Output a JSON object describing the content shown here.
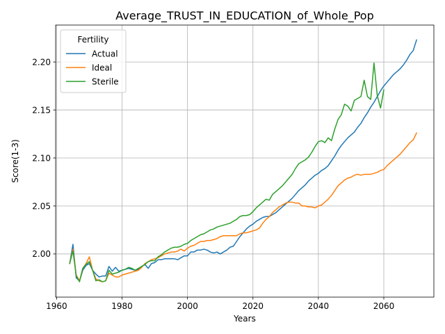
{
  "chart_data": {
    "type": "line",
    "title": "Average_TRUST_IN_EDUCATION_of_Whole_Pop",
    "xlabel": "Years",
    "ylabel": "Score(1-3)",
    "xlim": [
      1959.7,
      2075.3
    ],
    "ylim": [
      1.955,
      2.2385
    ],
    "xticks": [
      1960,
      1980,
      2000,
      2020,
      2040,
      2060
    ],
    "yticks": [
      2.0,
      2.05,
      2.1,
      2.15,
      2.2
    ],
    "ytick_labels": [
      "2.00",
      "2.05",
      "2.10",
      "2.15",
      "2.20"
    ],
    "grid": true,
    "legend": {
      "title": "Fertility",
      "placement": "top-left"
    },
    "series": [
      {
        "name": "Actual",
        "color": "#1f77b4",
        "points": [
          [
            1964,
            1.99
          ],
          [
            1965,
            2.01
          ],
          [
            1966,
            1.975
          ],
          [
            1967,
            1.972
          ],
          [
            1968,
            1.983
          ],
          [
            1969,
            1.988
          ],
          [
            1970,
            1.99
          ],
          [
            1971,
            1.983
          ],
          [
            1972,
            1.979
          ],
          [
            1973,
            1.976
          ],
          [
            1974,
            1.977
          ],
          [
            1975,
            1.977
          ],
          [
            1976,
            1.987
          ],
          [
            1977,
            1.982
          ],
          [
            1978,
            1.986
          ],
          [
            1979,
            1.982
          ],
          [
            1980,
            1.983
          ],
          [
            1981,
            1.984
          ],
          [
            1982,
            1.985
          ],
          [
            1983,
            1.984
          ],
          [
            1984,
            1.983
          ],
          [
            1985,
            1.984
          ],
          [
            1986,
            1.987
          ],
          [
            1987,
            1.989
          ],
          [
            1988,
            1.985
          ],
          [
            1989,
            1.99
          ],
          [
            1990,
            1.991
          ],
          [
            1991,
            1.994
          ],
          [
            1992,
            1.994
          ],
          [
            1993,
            1.995
          ],
          [
            1994,
            1.995
          ],
          [
            1995,
            1.995
          ],
          [
            1996,
            1.995
          ],
          [
            1997,
            1.994
          ],
          [
            1998,
            1.996
          ],
          [
            1999,
            1.998
          ],
          [
            2000,
            1.998
          ],
          [
            2001,
            2.002
          ],
          [
            2002,
            2.002
          ],
          [
            2003,
            2.004
          ],
          [
            2004,
            2.004
          ],
          [
            2005,
            2.005
          ],
          [
            2006,
            2.004
          ],
          [
            2007,
            2.002
          ],
          [
            2008,
            2.001
          ],
          [
            2009,
            2.002
          ],
          [
            2010,
            2.0
          ],
          [
            2011,
            2.002
          ],
          [
            2012,
            2.004
          ],
          [
            2013,
            2.007
          ],
          [
            2014,
            2.008
          ],
          [
            2015,
            2.013
          ],
          [
            2016,
            2.018
          ],
          [
            2017,
            2.022
          ],
          [
            2018,
            2.026
          ],
          [
            2019,
            2.029
          ],
          [
            2020,
            2.031
          ],
          [
            2021,
            2.034
          ],
          [
            2022,
            2.036
          ],
          [
            2023,
            2.038
          ],
          [
            2024,
            2.039
          ],
          [
            2025,
            2.039
          ],
          [
            2026,
            2.041
          ],
          [
            2027,
            2.043
          ],
          [
            2028,
            2.046
          ],
          [
            2029,
            2.049
          ],
          [
            2030,
            2.052
          ],
          [
            2031,
            2.055
          ],
          [
            2032,
            2.058
          ],
          [
            2033,
            2.062
          ],
          [
            2034,
            2.066
          ],
          [
            2035,
            2.069
          ],
          [
            2036,
            2.072
          ],
          [
            2037,
            2.076
          ],
          [
            2038,
            2.079
          ],
          [
            2039,
            2.082
          ],
          [
            2040,
            2.084
          ],
          [
            2041,
            2.087
          ],
          [
            2042,
            2.089
          ],
          [
            2043,
            2.092
          ],
          [
            2044,
            2.097
          ],
          [
            2045,
            2.102
          ],
          [
            2046,
            2.108
          ],
          [
            2047,
            2.113
          ],
          [
            2048,
            2.117
          ],
          [
            2049,
            2.121
          ],
          [
            2050,
            2.124
          ],
          [
            2051,
            2.127
          ],
          [
            2052,
            2.132
          ],
          [
            2053,
            2.136
          ],
          [
            2054,
            2.142
          ],
          [
            2055,
            2.147
          ],
          [
            2056,
            2.153
          ],
          [
            2057,
            2.158
          ],
          [
            2058,
            2.164
          ],
          [
            2059,
            2.17
          ],
          [
            2060,
            2.175
          ],
          [
            2061,
            2.179
          ],
          [
            2062,
            2.183
          ],
          [
            2063,
            2.187
          ],
          [
            2064,
            2.19
          ],
          [
            2065,
            2.193
          ],
          [
            2066,
            2.197
          ],
          [
            2067,
            2.202
          ],
          [
            2068,
            2.208
          ],
          [
            2069,
            2.212
          ],
          [
            2070,
            2.223
          ]
        ]
      },
      {
        "name": "Ideal",
        "color": "#ff7f0e",
        "points": [
          [
            1964,
            1.99
          ],
          [
            1965,
            2.005
          ],
          [
            1966,
            1.978
          ],
          [
            1967,
            1.972
          ],
          [
            1968,
            1.985
          ],
          [
            1969,
            1.99
          ],
          [
            1970,
            1.997
          ],
          [
            1971,
            1.983
          ],
          [
            1972,
            1.974
          ],
          [
            1973,
            1.972
          ],
          [
            1974,
            1.971
          ],
          [
            1975,
            1.972
          ],
          [
            1976,
            1.98
          ],
          [
            1977,
            1.978
          ],
          [
            1978,
            1.976
          ],
          [
            1979,
            1.976
          ],
          [
            1980,
            1.978
          ],
          [
            1981,
            1.979
          ],
          [
            1982,
            1.98
          ],
          [
            1983,
            1.981
          ],
          [
            1984,
            1.982
          ],
          [
            1985,
            1.983
          ],
          [
            1986,
            1.986
          ],
          [
            1987,
            1.99
          ],
          [
            1988,
            1.992
          ],
          [
            1989,
            1.994
          ],
          [
            1990,
            1.995
          ],
          [
            1991,
            1.996
          ],
          [
            1992,
            1.998
          ],
          [
            1993,
            2.0
          ],
          [
            1994,
            2.001
          ],
          [
            1995,
            2.002
          ],
          [
            1996,
            2.002
          ],
          [
            1997,
            2.003
          ],
          [
            1998,
            2.005
          ],
          [
            1999,
            2.003
          ],
          [
            2000,
            2.006
          ],
          [
            2001,
            2.008
          ],
          [
            2002,
            2.009
          ],
          [
            2003,
            2.011
          ],
          [
            2004,
            2.013
          ],
          [
            2005,
            2.013
          ],
          [
            2006,
            2.014
          ],
          [
            2007,
            2.014
          ],
          [
            2008,
            2.015
          ],
          [
            2009,
            2.016
          ],
          [
            2010,
            2.018
          ],
          [
            2011,
            2.019
          ],
          [
            2012,
            2.019
          ],
          [
            2013,
            2.019
          ],
          [
            2014,
            2.019
          ],
          [
            2015,
            2.019
          ],
          [
            2016,
            2.021
          ],
          [
            2017,
            2.022
          ],
          [
            2018,
            2.022
          ],
          [
            2019,
            2.023
          ],
          [
            2020,
            2.024
          ],
          [
            2021,
            2.025
          ],
          [
            2022,
            2.027
          ],
          [
            2023,
            2.032
          ],
          [
            2024,
            2.036
          ],
          [
            2025,
            2.039
          ],
          [
            2026,
            2.043
          ],
          [
            2027,
            2.046
          ],
          [
            2028,
            2.049
          ],
          [
            2029,
            2.051
          ],
          [
            2030,
            2.053
          ],
          [
            2031,
            2.054
          ],
          [
            2032,
            2.054
          ],
          [
            2033,
            2.053
          ],
          [
            2034,
            2.053
          ],
          [
            2035,
            2.05
          ],
          [
            2036,
            2.05
          ],
          [
            2037,
            2.049
          ],
          [
            2038,
            2.049
          ],
          [
            2039,
            2.048
          ],
          [
            2040,
            2.05
          ],
          [
            2041,
            2.051
          ],
          [
            2042,
            2.054
          ],
          [
            2043,
            2.057
          ],
          [
            2044,
            2.061
          ],
          [
            2045,
            2.066
          ],
          [
            2046,
            2.071
          ],
          [
            2047,
            2.074
          ],
          [
            2048,
            2.077
          ],
          [
            2049,
            2.079
          ],
          [
            2050,
            2.08
          ],
          [
            2051,
            2.082
          ],
          [
            2052,
            2.083
          ],
          [
            2053,
            2.082
          ],
          [
            2054,
            2.083
          ],
          [
            2055,
            2.083
          ],
          [
            2056,
            2.083
          ],
          [
            2057,
            2.084
          ],
          [
            2058,
            2.085
          ],
          [
            2059,
            2.087
          ],
          [
            2060,
            2.088
          ],
          [
            2061,
            2.092
          ],
          [
            2062,
            2.095
          ],
          [
            2063,
            2.098
          ],
          [
            2064,
            2.101
          ],
          [
            2065,
            2.104
          ],
          [
            2066,
            2.108
          ],
          [
            2067,
            2.112
          ],
          [
            2068,
            2.116
          ],
          [
            2069,
            2.119
          ],
          [
            2070,
            2.126
          ]
        ]
      },
      {
        "name": "Sterile",
        "color": "#2ca02c",
        "points": [
          [
            1964,
            1.99
          ],
          [
            1965,
            2.003
          ],
          [
            1966,
            1.977
          ],
          [
            1967,
            1.971
          ],
          [
            1968,
            1.985
          ],
          [
            1969,
            1.989
          ],
          [
            1970,
            1.992
          ],
          [
            1971,
            1.983
          ],
          [
            1972,
            1.972
          ],
          [
            1973,
            1.973
          ],
          [
            1974,
            1.971
          ],
          [
            1975,
            1.972
          ],
          [
            1976,
            1.983
          ],
          [
            1977,
            1.979
          ],
          [
            1978,
            1.98
          ],
          [
            1979,
            1.981
          ],
          [
            1980,
            1.983
          ],
          [
            1981,
            1.984
          ],
          [
            1982,
            1.986
          ],
          [
            1983,
            1.985
          ],
          [
            1984,
            1.983
          ],
          [
            1985,
            1.985
          ],
          [
            1986,
            1.987
          ],
          [
            1987,
            1.989
          ],
          [
            1988,
            1.992
          ],
          [
            1989,
            1.993
          ],
          [
            1990,
            1.993
          ],
          [
            1991,
            1.997
          ],
          [
            1992,
            1.999
          ],
          [
            1993,
            2.002
          ],
          [
            1994,
            2.004
          ],
          [
            1995,
            2.006
          ],
          [
            1996,
            2.007
          ],
          [
            1997,
            2.007
          ],
          [
            1998,
            2.008
          ],
          [
            1999,
            2.01
          ],
          [
            2000,
            2.011
          ],
          [
            2001,
            2.014
          ],
          [
            2002,
            2.016
          ],
          [
            2003,
            2.018
          ],
          [
            2004,
            2.02
          ],
          [
            2005,
            2.021
          ],
          [
            2006,
            2.023
          ],
          [
            2007,
            2.025
          ],
          [
            2008,
            2.026
          ],
          [
            2009,
            2.028
          ],
          [
            2010,
            2.029
          ],
          [
            2011,
            2.03
          ],
          [
            2012,
            2.031
          ],
          [
            2013,
            2.032
          ],
          [
            2014,
            2.034
          ],
          [
            2015,
            2.036
          ],
          [
            2016,
            2.039
          ],
          [
            2017,
            2.04
          ],
          [
            2018,
            2.04
          ],
          [
            2019,
            2.041
          ],
          [
            2020,
            2.044
          ],
          [
            2021,
            2.048
          ],
          [
            2022,
            2.051
          ],
          [
            2023,
            2.054
          ],
          [
            2024,
            2.057
          ],
          [
            2025,
            2.056
          ],
          [
            2026,
            2.062
          ],
          [
            2027,
            2.065
          ],
          [
            2028,
            2.068
          ],
          [
            2029,
            2.071
          ],
          [
            2030,
            2.075
          ],
          [
            2031,
            2.079
          ],
          [
            2032,
            2.083
          ],
          [
            2033,
            2.089
          ],
          [
            2034,
            2.094
          ],
          [
            2035,
            2.096
          ],
          [
            2036,
            2.098
          ],
          [
            2037,
            2.101
          ],
          [
            2038,
            2.106
          ],
          [
            2039,
            2.112
          ],
          [
            2040,
            2.117
          ],
          [
            2041,
            2.118
          ],
          [
            2042,
            2.116
          ],
          [
            2043,
            2.121
          ],
          [
            2044,
            2.118
          ],
          [
            2045,
            2.13
          ],
          [
            2046,
            2.14
          ],
          [
            2047,
            2.145
          ],
          [
            2048,
            2.156
          ],
          [
            2049,
            2.154
          ],
          [
            2050,
            2.149
          ],
          [
            2051,
            2.16
          ],
          [
            2052,
            2.162
          ],
          [
            2053,
            2.164
          ],
          [
            2054,
            2.181
          ],
          [
            2055,
            2.164
          ],
          [
            2056,
            2.161
          ],
          [
            2057,
            2.199
          ],
          [
            2058,
            2.165
          ],
          [
            2059,
            2.152
          ],
          [
            2060,
            2.171
          ]
        ]
      }
    ]
  }
}
